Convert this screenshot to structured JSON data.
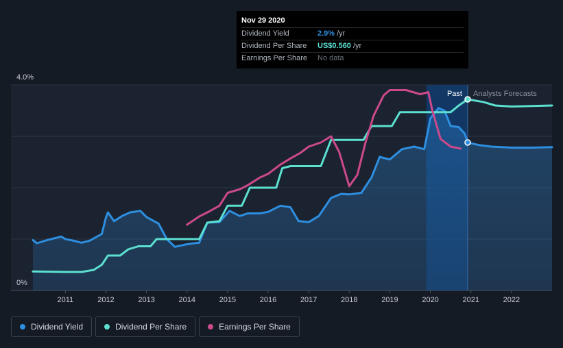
{
  "chart_data": {
    "type": "line",
    "y_axis": {
      "top_label": "4.0%",
      "bottom_label": "0%",
      "ylim": [
        0,
        4.0
      ]
    },
    "x_ticks": [
      "2011",
      "2012",
      "2013",
      "2014",
      "2015",
      "2016",
      "2017",
      "2018",
      "2019",
      "2020",
      "2021",
      "2022"
    ],
    "x_range": [
      2010.2,
      2023.0
    ],
    "past_label": "Past",
    "forecast_label": "Analysts Forecasts",
    "forecast_start": 2020.92,
    "highlight_start": 2019.9,
    "series": [
      {
        "name": "Dividend Yield",
        "color": "#2e8fe0",
        "filled": true,
        "points": [
          [
            2010.2,
            0.98
          ],
          [
            2010.3,
            0.92
          ],
          [
            2010.55,
            0.98
          ],
          [
            2010.9,
            1.05
          ],
          [
            2011.0,
            1.0
          ],
          [
            2011.2,
            0.97
          ],
          [
            2011.4,
            0.93
          ],
          [
            2011.6,
            0.97
          ],
          [
            2011.9,
            1.1
          ],
          [
            2012.0,
            1.42
          ],
          [
            2012.05,
            1.52
          ],
          [
            2012.2,
            1.35
          ],
          [
            2012.4,
            1.45
          ],
          [
            2012.6,
            1.52
          ],
          [
            2012.85,
            1.55
          ],
          [
            2013.0,
            1.43
          ],
          [
            2013.3,
            1.3
          ],
          [
            2013.5,
            1.0
          ],
          [
            2013.7,
            0.85
          ],
          [
            2014.0,
            0.9
          ],
          [
            2014.3,
            0.93
          ],
          [
            2014.5,
            1.32
          ],
          [
            2014.8,
            1.33
          ],
          [
            2015.05,
            1.55
          ],
          [
            2015.3,
            1.45
          ],
          [
            2015.5,
            1.5
          ],
          [
            2015.8,
            1.5
          ],
          [
            2016.0,
            1.53
          ],
          [
            2016.3,
            1.65
          ],
          [
            2016.55,
            1.62
          ],
          [
            2016.75,
            1.35
          ],
          [
            2017.0,
            1.33
          ],
          [
            2017.25,
            1.45
          ],
          [
            2017.55,
            1.8
          ],
          [
            2017.8,
            1.88
          ],
          [
            2018.0,
            1.87
          ],
          [
            2018.3,
            1.9
          ],
          [
            2018.55,
            2.2
          ],
          [
            2018.75,
            2.6
          ],
          [
            2019.0,
            2.55
          ],
          [
            2019.3,
            2.75
          ],
          [
            2019.6,
            2.8
          ],
          [
            2019.85,
            2.75
          ],
          [
            2020.0,
            3.35
          ],
          [
            2020.2,
            3.55
          ],
          [
            2020.35,
            3.5
          ],
          [
            2020.5,
            3.2
          ],
          [
            2020.7,
            3.18
          ],
          [
            2020.85,
            3.05
          ],
          [
            2020.92,
            2.88
          ],
          [
            2021.2,
            2.83
          ],
          [
            2021.5,
            2.8
          ],
          [
            2022.0,
            2.78
          ],
          [
            2022.5,
            2.78
          ],
          [
            2023.0,
            2.79
          ]
        ],
        "marker": [
          2020.92,
          2.88
        ]
      },
      {
        "name": "Dividend Per Share",
        "color": "#5ce0d0",
        "filled": false,
        "points": [
          [
            2010.2,
            0.37
          ],
          [
            2011.0,
            0.36
          ],
          [
            2011.4,
            0.36
          ],
          [
            2011.7,
            0.4
          ],
          [
            2011.9,
            0.5
          ],
          [
            2012.05,
            0.68
          ],
          [
            2012.35,
            0.68
          ],
          [
            2012.55,
            0.8
          ],
          [
            2012.8,
            0.86
          ],
          [
            2013.1,
            0.86
          ],
          [
            2013.25,
            1.0
          ],
          [
            2013.6,
            1.0
          ],
          [
            2014.0,
            1.0
          ],
          [
            2014.3,
            1.0
          ],
          [
            2014.5,
            1.32
          ],
          [
            2014.8,
            1.35
          ],
          [
            2015.0,
            1.65
          ],
          [
            2015.35,
            1.65
          ],
          [
            2015.55,
            2.0
          ],
          [
            2016.0,
            2.0
          ],
          [
            2016.2,
            2.0
          ],
          [
            2016.35,
            2.38
          ],
          [
            2016.55,
            2.42
          ],
          [
            2017.0,
            2.42
          ],
          [
            2017.3,
            2.42
          ],
          [
            2017.55,
            2.93
          ],
          [
            2018.0,
            2.93
          ],
          [
            2018.35,
            2.93
          ],
          [
            2018.55,
            3.2
          ],
          [
            2019.0,
            3.2
          ],
          [
            2019.05,
            3.2
          ],
          [
            2019.25,
            3.47
          ],
          [
            2019.7,
            3.47
          ],
          [
            2020.0,
            3.47
          ],
          [
            2020.5,
            3.47
          ],
          [
            2020.7,
            3.6
          ],
          [
            2020.92,
            3.72
          ],
          [
            2021.3,
            3.67
          ],
          [
            2021.6,
            3.6
          ],
          [
            2022.0,
            3.58
          ],
          [
            2022.5,
            3.59
          ],
          [
            2023.0,
            3.6
          ]
        ],
        "marker": [
          2020.92,
          3.72
        ]
      },
      {
        "name": "Earnings Per Share",
        "color": "#cc4a8a",
        "filled": false,
        "points": [
          [
            2014.0,
            1.28
          ],
          [
            2014.3,
            1.44
          ],
          [
            2014.55,
            1.54
          ],
          [
            2014.8,
            1.65
          ],
          [
            2015.0,
            1.9
          ],
          [
            2015.3,
            1.97
          ],
          [
            2015.5,
            2.05
          ],
          [
            2015.8,
            2.2
          ],
          [
            2016.0,
            2.27
          ],
          [
            2016.3,
            2.45
          ],
          [
            2016.55,
            2.57
          ],
          [
            2016.8,
            2.68
          ],
          [
            2017.0,
            2.8
          ],
          [
            2017.3,
            2.88
          ],
          [
            2017.55,
            3.0
          ],
          [
            2017.75,
            2.7
          ],
          [
            2018.0,
            2.03
          ],
          [
            2018.2,
            2.25
          ],
          [
            2018.4,
            2.88
          ],
          [
            2018.6,
            3.4
          ],
          [
            2018.85,
            3.8
          ],
          [
            2019.0,
            3.9
          ],
          [
            2019.4,
            3.9
          ],
          [
            2019.75,
            3.82
          ],
          [
            2019.95,
            3.86
          ],
          [
            2020.05,
            3.5
          ],
          [
            2020.25,
            2.95
          ],
          [
            2020.5,
            2.8
          ],
          [
            2020.75,
            2.76
          ]
        ]
      }
    ]
  },
  "tooltip": {
    "date": "Nov 29 2020",
    "rows": [
      {
        "label": "Dividend Yield",
        "value": "2.9%",
        "unit": "/yr"
      },
      {
        "label": "Dividend Per Share",
        "value": "US$0.560",
        "unit": "/yr"
      },
      {
        "label": "Earnings Per Share",
        "value": "No data"
      }
    ]
  },
  "legend": [
    {
      "label": "Dividend Yield",
      "color": "#2e8fe0"
    },
    {
      "label": "Dividend Per Share",
      "color": "#5ce0d0"
    },
    {
      "label": "Earnings Per Share",
      "color": "#cc4a8a"
    }
  ]
}
